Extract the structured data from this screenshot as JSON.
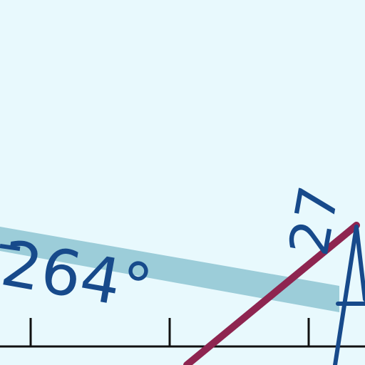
{
  "map": {
    "background_color": "#e8f9fd",
    "route_band_color": "#9ccdd9",
    "route_band_label": "264°",
    "runway_number": "27",
    "line_colors": {
      "crossing_line": "#8e2550",
      "chart_ink": "#174a8b",
      "scale_bar": "#111111"
    }
  }
}
